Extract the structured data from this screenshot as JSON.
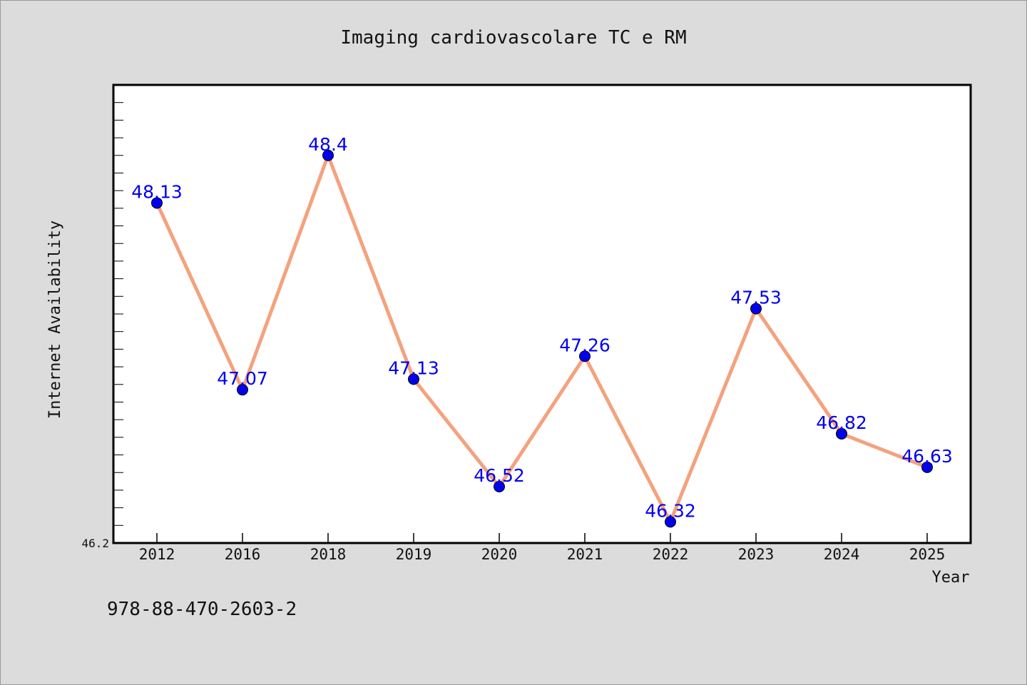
{
  "chart_data": {
    "type": "line",
    "title": "Imaging cardiovascolare TC e RM",
    "xlabel": "Year",
    "ylabel": "Internet Availability",
    "categories": [
      "2012",
      "2016",
      "2018",
      "2019",
      "2020",
      "2021",
      "2022",
      "2023",
      "2024",
      "2025"
    ],
    "series": [
      {
        "values": [
          48.13,
          47.07,
          48.4,
          47.13,
          46.52,
          47.26,
          46.32,
          47.53,
          46.82,
          46.63
        ],
        "labels": [
          "48.13",
          "47.07",
          "48.4",
          "47.13",
          "46.52",
          "47.26",
          "46.32",
          "47.53",
          "46.82",
          "46.63"
        ]
      }
    ],
    "ylim": [
      46.2,
      48.8
    ],
    "ytick_labels": [
      "46.2"
    ],
    "grid": false,
    "legend": "none",
    "colors": {
      "line": "#f4a27e",
      "marker": "#0000ee",
      "data_label": "#0000ee",
      "plot_background": "#ffffff",
      "page_background": "#dcdcdc"
    }
  },
  "footnote": "978-88-470-2603-2"
}
